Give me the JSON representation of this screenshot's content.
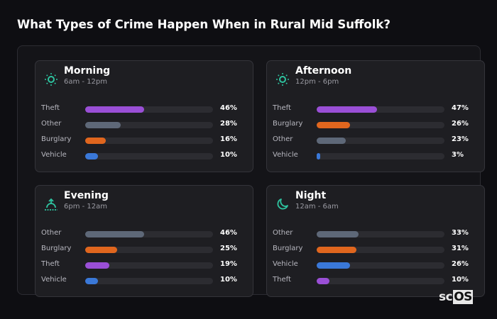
{
  "chart_data": {
    "type": "bar",
    "title": "What Types of Crime Happen When in Rural Mid Suffolk?",
    "colors": {
      "Theft": "#9a4fd6",
      "Other": "#5e6878",
      "Burglary": "#e0661e",
      "Vehicle": "#3a78d8"
    },
    "accent": "#2ec4a0",
    "panels": [
      {
        "name": "Morning",
        "range": "6am - 12pm",
        "icon": "sun-icon",
        "categories": [
          "Theft",
          "Other",
          "Burglary",
          "Vehicle"
        ],
        "values": [
          46,
          28,
          16,
          10
        ],
        "labels": [
          "46%",
          "28%",
          "16%",
          "10%"
        ]
      },
      {
        "name": "Afternoon",
        "range": "12pm - 6pm",
        "icon": "sun-icon",
        "categories": [
          "Theft",
          "Burglary",
          "Other",
          "Vehicle"
        ],
        "values": [
          47,
          26,
          23,
          3
        ],
        "labels": [
          "47%",
          "26%",
          "23%",
          "3%"
        ]
      },
      {
        "name": "Evening",
        "range": "6pm - 12am",
        "icon": "sunset-icon",
        "categories": [
          "Other",
          "Burglary",
          "Theft",
          "Vehicle"
        ],
        "values": [
          46,
          25,
          19,
          10
        ],
        "labels": [
          "46%",
          "25%",
          "19%",
          "10%"
        ]
      },
      {
        "name": "Night",
        "range": "12am - 6am",
        "icon": "moon-icon",
        "categories": [
          "Other",
          "Burglary",
          "Vehicle",
          "Theft"
        ],
        "values": [
          33,
          31,
          26,
          10
        ],
        "labels": [
          "33%",
          "31%",
          "26%",
          "10%"
        ]
      }
    ],
    "xlim": [
      0,
      100
    ]
  },
  "logo": {
    "a": "sc",
    "b": "OS"
  }
}
